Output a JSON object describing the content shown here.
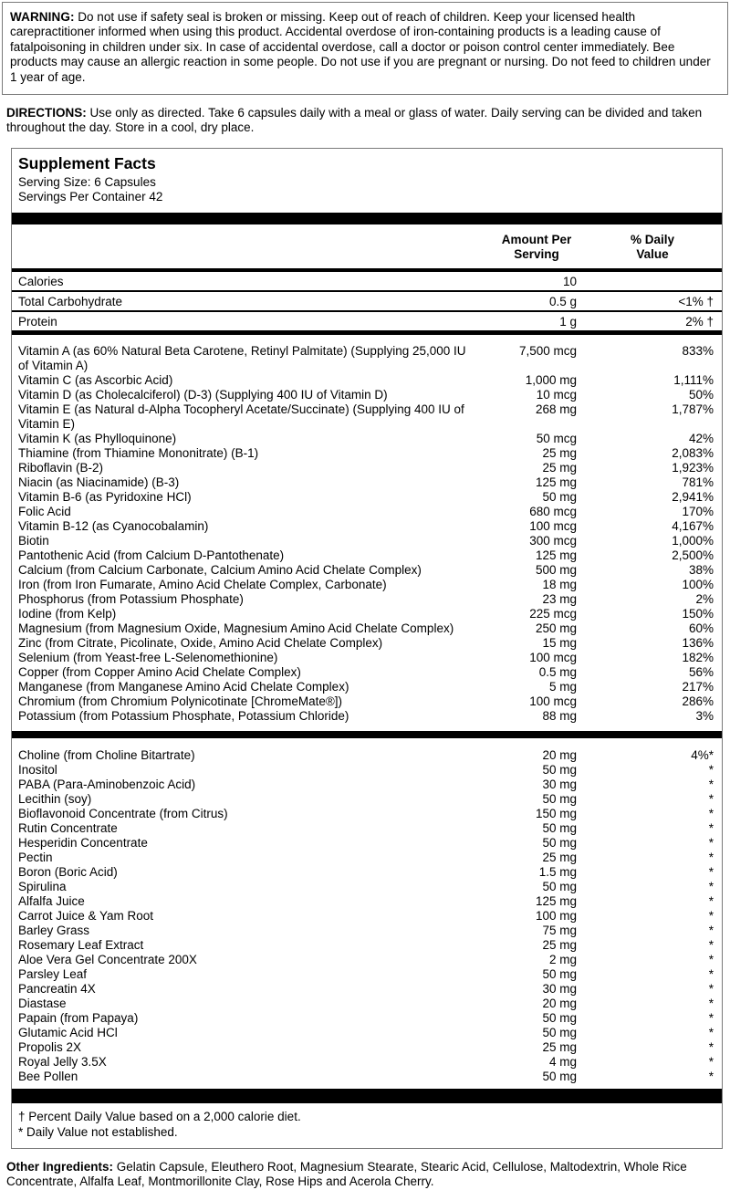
{
  "warning": {
    "label": "WARNING:",
    "text": " Do not use if safety seal is broken or missing. Keep out of reach of children. Keep your licensed health carepractitioner informed when using this product. Accidental overdose of iron-containing products is a leading cause of fatalpoisoning in children under six. In case of accidental overdose, call a doctor or poison control center immediately. Bee products may cause an allergic reaction in some people. Do not use if you are pregnant or nursing. Do not feed to children under 1 year of age."
  },
  "directions": {
    "label": "DIRECTIONS:",
    "text": " Use only as directed. Take 6 capsules daily with a meal or glass of water. Daily serving can be divided and taken throughout the day.  Store in a cool, dry place."
  },
  "supplement_facts": {
    "title": "Supplement Facts",
    "serving_size": "Serving Size: 6 Capsules",
    "servings_per_container": "Servings Per Container 42",
    "columns": {
      "amount_line1": "Amount Per",
      "amount_line2": "Serving",
      "pct_line1": "% Daily",
      "pct_line2": "Value"
    },
    "macro_rows": [
      {
        "name": "Calories",
        "amount": "10",
        "pct": ""
      },
      {
        "name": "Total Carbohydrate",
        "amount": "0.5 g",
        "pct": "<1% †"
      },
      {
        "name": "Protein",
        "amount": "1 g",
        "pct": "2% †"
      }
    ],
    "nutrient_rows": [
      {
        "name": "Vitamin A (as 60% Natural Beta Carotene, Retinyl Palmitate) (Supplying 25,000 IU of Vitamin A)",
        "amount": "7,500 mcg",
        "pct": "833%"
      },
      {
        "name": "Vitamin C (as Ascorbic Acid)",
        "amount": "1,000 mg",
        "pct": "1,111%"
      },
      {
        "name": "Vitamin D (as Cholecalciferol) (D-3) (Supplying 400 IU of Vitamin D)",
        "amount": "10 mcg",
        "pct": "50%"
      },
      {
        "name": "Vitamin E (as Natural d-Alpha Tocopheryl Acetate/Succinate) (Supplying 400 IU of Vitamin E)",
        "amount": "268 mg",
        "pct": "1,787%"
      },
      {
        "name": "Vitamin K (as Phylloquinone)",
        "amount": "50 mcg",
        "pct": "42%"
      },
      {
        "name": "Thiamine (from Thiamine Mononitrate) (B-1)",
        "amount": "25 mg",
        "pct": "2,083%"
      },
      {
        "name": "Riboflavin (B-2)",
        "amount": "25 mg",
        "pct": "1,923%"
      },
      {
        "name": "Niacin (as Niacinamide) (B-3)",
        "amount": "125 mg",
        "pct": "781%"
      },
      {
        "name": "Vitamin B-6 (as Pyridoxine HCl)",
        "amount": "50 mg",
        "pct": "2,941%"
      },
      {
        "name": "Folic Acid",
        "amount": "680 mcg",
        "pct": "170%"
      },
      {
        "name": "Vitamin B-12 (as Cyanocobalamin)",
        "amount": "100 mcg",
        "pct": "4,167%"
      },
      {
        "name": "Biotin",
        "amount": "300 mcg",
        "pct": "1,000%"
      },
      {
        "name": "Pantothenic Acid (from Calcium D-Pantothenate)",
        "amount": "125 mg",
        "pct": "2,500%"
      },
      {
        "name": "Calcium (from Calcium Carbonate, Calcium Amino Acid Chelate Complex)",
        "amount": "500 mg",
        "pct": "38%"
      },
      {
        "name": "Iron (from Iron Fumarate, Amino Acid Chelate Complex, Carbonate)",
        "amount": "18 mg",
        "pct": "100%"
      },
      {
        "name": "Phosphorus (from Potassium Phosphate)",
        "amount": "23 mg",
        "pct": "2%"
      },
      {
        "name": "Iodine (from Kelp)",
        "amount": "225 mcg",
        "pct": "150%"
      },
      {
        "name": "Magnesium (from Magnesium Oxide, Magnesium Amino Acid Chelate Complex)",
        "amount": "250 mg",
        "pct": "60%"
      },
      {
        "name": "Zinc (from Citrate, Picolinate, Oxide, Amino Acid Chelate Complex)",
        "amount": "15 mg",
        "pct": "136%"
      },
      {
        "name": "Selenium (from Yeast-free L-Selenomethionine)",
        "amount": "100 mcg",
        "pct": "182%"
      },
      {
        "name": "Copper (from Copper Amino Acid Chelate Complex)",
        "amount": "0.5 mg",
        "pct": "56%"
      },
      {
        "name": "Manganese (from Manganese Amino Acid Chelate Complex)",
        "amount": "5 mg",
        "pct": "217%"
      },
      {
        "name": "Chromium (from Chromium Polynicotinate [ChromeMate®])",
        "amount": "100 mcg",
        "pct": "286%"
      },
      {
        "name": "Potassium (from Potassium Phosphate, Potassium Chloride)",
        "amount": "88 mg",
        "pct": "3%"
      }
    ],
    "other_rows": [
      {
        "name": "Choline (from Choline Bitartrate)",
        "amount": "20 mg",
        "pct": "4%*"
      },
      {
        "name": "Inositol",
        "amount": "50 mg",
        "pct": "*"
      },
      {
        "name": "PABA (Para-Aminobenzoic Acid)",
        "amount": "30 mg",
        "pct": "*"
      },
      {
        "name": "Lecithin (soy)",
        "amount": "50 mg",
        "pct": "*"
      },
      {
        "name": "Bioflavonoid Concentrate (from Citrus)",
        "amount": "150 mg",
        "pct": "*"
      },
      {
        "name": "Rutin Concentrate",
        "amount": "50 mg",
        "pct": "*"
      },
      {
        "name": "Hesperidin Concentrate",
        "amount": "50 mg",
        "pct": "*"
      },
      {
        "name": "Pectin",
        "amount": "25 mg",
        "pct": "*"
      },
      {
        "name": "Boron (Boric Acid)",
        "amount": "1.5 mg",
        "pct": "*"
      },
      {
        "name": "Spirulina",
        "amount": "50 mg",
        "pct": "*"
      },
      {
        "name": "Alfalfa Juice",
        "amount": "125 mg",
        "pct": "*"
      },
      {
        "name": "Carrot Juice & Yam Root",
        "amount": "100 mg",
        "pct": "*"
      },
      {
        "name": "Barley Grass",
        "amount": "75 mg",
        "pct": "*"
      },
      {
        "name": "Rosemary Leaf Extract",
        "amount": "25 mg",
        "pct": "*"
      },
      {
        "name": "Aloe Vera Gel Concentrate 200X",
        "amount": "2 mg",
        "pct": "*"
      },
      {
        "name": "Parsley Leaf",
        "amount": "50 mg",
        "pct": "*"
      },
      {
        "name": "Pancreatin 4X",
        "amount": "30 mg",
        "pct": "*"
      },
      {
        "name": "Diastase",
        "amount": "20 mg",
        "pct": "*"
      },
      {
        "name": "Papain (from Papaya)",
        "amount": "50 mg",
        "pct": "*"
      },
      {
        "name": "Glutamic Acid HCl",
        "amount": "50 mg",
        "pct": "*"
      },
      {
        "name": "Propolis 2X",
        "amount": "25 mg",
        "pct": "*"
      },
      {
        "name": "Royal Jelly 3.5X",
        "amount": "4 mg",
        "pct": "*"
      },
      {
        "name": "Bee Pollen",
        "amount": "50 mg",
        "pct": "*"
      }
    ],
    "footnotes": {
      "daily_value": "† Percent Daily Value based on a 2,000 calorie diet.",
      "not_established": "* Daily Value not established."
    }
  },
  "other_ingredients": {
    "label": "Other Ingredients:",
    "text": " Gelatin Capsule, Eleuthero Root, Magnesium Stearate, Stearic Acid, Cellulose, Maltodextrin, Whole Rice Concentrate, Alfalfa Leaf, Montmorillonite Clay, Rose Hips and Acerola Cherry."
  },
  "colors": {
    "text": "#000000",
    "rule": "#000000",
    "box_border": "#7a7a7a",
    "background": "#ffffff"
  }
}
